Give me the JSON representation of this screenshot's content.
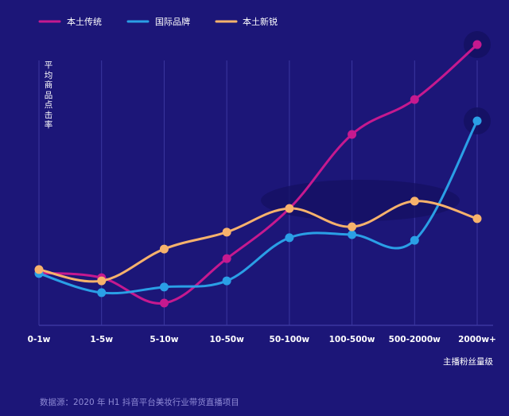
{
  "chart_data": {
    "type": "line",
    "title": "",
    "xlabel": "主播粉丝量级",
    "ylabel": "平均商品点击率",
    "categories": [
      "0-1w",
      "1-5w",
      "5-10w",
      "10-50w",
      "50-100w",
      "100-500w",
      "500-2000w",
      "2000w+"
    ],
    "ylim": [
      0,
      100
    ],
    "y_unit": "relative (no numeric ticks shown)",
    "grid": "vertical",
    "legend": "top-left",
    "series": [
      {
        "name": "本土传统",
        "color": "#c6198f",
        "values": [
          18.6,
          16.9,
          7.9,
          23.7,
          41.5,
          67.8,
          80.2,
          99.7
        ]
      },
      {
        "name": "国际品牌",
        "color": "#2a9fe6",
        "values": [
          18.4,
          11.6,
          13.6,
          15.8,
          31.1,
          32.2,
          30.2,
          72.6
        ]
      },
      {
        "name": "本土新锐",
        "color": "#f7b26c",
        "values": [
          19.8,
          15.8,
          27.1,
          33.1,
          41.5,
          35.0,
          44.1,
          37.9
        ]
      }
    ],
    "source": "数据源：2020 年 H1 抖音平台美妆行业带货直播项目"
  },
  "colors": {
    "background": "#1c1678",
    "grid": "#3b37a0",
    "highlight": "#141062"
  }
}
